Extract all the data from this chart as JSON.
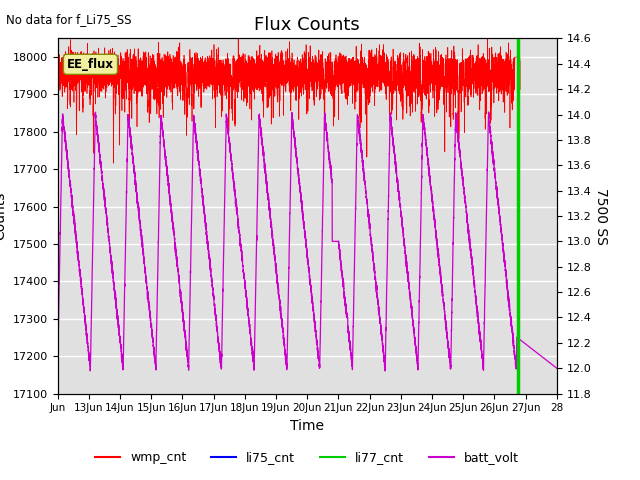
{
  "title": "Flux Counts",
  "no_data_text": "No data for f_Li75_SS",
  "ee_flux_label": "EE_flux",
  "xlabel": "Time",
  "ylabel_left": "Counts",
  "ylabel_right": "7500 SS",
  "ylim_left": [
    17100,
    18050
  ],
  "ylim_right": [
    11.8,
    14.6
  ],
  "x_start": 12,
  "x_end": 28,
  "x_ticks": [
    12,
    13,
    14,
    15,
    16,
    17,
    18,
    19,
    20,
    21,
    22,
    23,
    24,
    25,
    26,
    27,
    28
  ],
  "x_tick_labels": [
    "Jun",
    "13Jun",
    "14Jun",
    "15Jun",
    "16Jun",
    "17Jun",
    "18Jun",
    "19Jun",
    "20Jun",
    "21Jun",
    "22Jun",
    "23Jun",
    "24Jun",
    "25Jun",
    "26Jun",
    "27Jun",
    "28"
  ],
  "wmp_color": "#ff0000",
  "li75_color": "#0000ff",
  "li77_color": "#00cc00",
  "batt_color": "#cc00cc",
  "bg_color": "#e0e0e0",
  "legend_entries": [
    "wmp_cnt",
    "li75_cnt",
    "li77_cnt",
    "batt_volt"
  ],
  "legend_colors": [
    "#ff0000",
    "#0000ff",
    "#00cc00",
    "#cc00cc"
  ],
  "left_yticks": [
    17100,
    17200,
    17300,
    17400,
    17500,
    17600,
    17700,
    17800,
    17900,
    18000
  ],
  "right_yticks": [
    11.8,
    12.0,
    12.2,
    12.4,
    12.6,
    12.8,
    13.0,
    13.2,
    13.4,
    13.6,
    13.8,
    14.0,
    14.2,
    14.4,
    14.6
  ]
}
